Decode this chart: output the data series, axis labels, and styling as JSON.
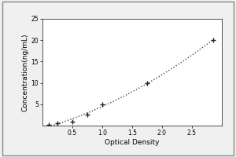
{
  "x_data": [
    0.1,
    0.25,
    0.5,
    0.75,
    1.0,
    1.75,
    2.85
  ],
  "y_data": [
    0.1,
    0.5,
    1.0,
    2.5,
    5.0,
    10.0,
    20.0
  ],
  "xlabel": "Optical Density",
  "ylabel": "Concentration(ng/mL)",
  "xlim": [
    0,
    3.0
  ],
  "ylim": [
    0,
    25
  ],
  "xticks": [
    0.5,
    1.0,
    1.5,
    2.0,
    2.5
  ],
  "yticks": [
    5,
    10,
    15,
    20,
    25
  ],
  "line_color": "#444444",
  "marker_color": "#222222",
  "background_color": "#f0f0f0",
  "plot_bg_color": "#ffffff",
  "axis_fontsize": 6.5,
  "tick_fontsize": 5.5,
  "border_color": "#999999"
}
